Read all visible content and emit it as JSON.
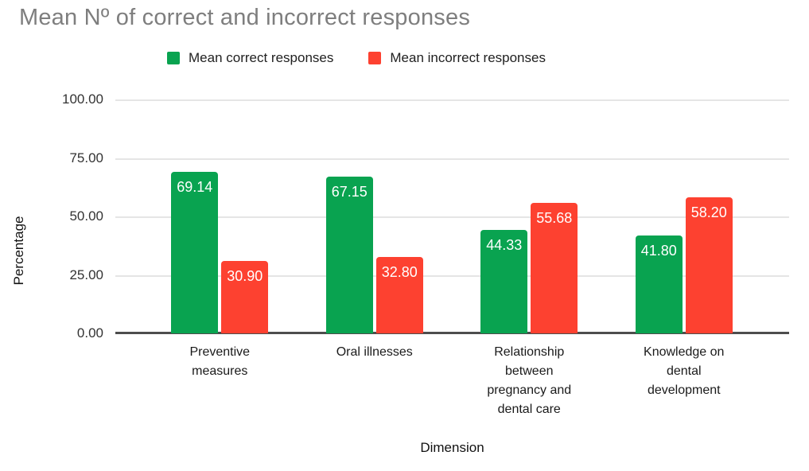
{
  "title": "Mean Nº of correct and incorrect responses",
  "legend": {
    "items": [
      {
        "label": "Mean correct responses",
        "color": "#09a350"
      },
      {
        "label": "Mean incorrect responses",
        "color": "#fd4130"
      }
    ]
  },
  "axes": {
    "y_title": "Percentage",
    "x_title": "Dimension",
    "y_tick_labels": [
      "100.00",
      "75.00",
      "50.00",
      "25.00",
      "0.00"
    ]
  },
  "chart_data": {
    "type": "bar",
    "title": "Mean Nº of correct and incorrect responses",
    "categories": [
      "Preventive measures",
      "Oral illnesses",
      "Relationship between pregnancy and dental care",
      "Knowledge on dental development"
    ],
    "series": [
      {
        "name": "Mean correct responses",
        "color": "#09a350",
        "values": [
          69.14,
          67.15,
          44.33,
          41.8
        ]
      },
      {
        "name": "Mean incorrect responses",
        "color": "#fd4130",
        "values": [
          30.9,
          32.8,
          55.68,
          58.2
        ]
      }
    ],
    "xlabel": "Dimension",
    "ylabel": "Percentage",
    "ylim": [
      0,
      100
    ],
    "yticks": [
      0,
      25,
      50,
      75,
      100
    ],
    "grid": true,
    "legend_position": "top",
    "value_labels": "inside bar top, white, two decimals"
  },
  "colors": {
    "title_text": "#7e7e7e",
    "gridline": "#e5e5e5",
    "axis_baseline": "#4d4d4d",
    "bar_value_text": "#ffffff",
    "background": "#ffffff"
  }
}
